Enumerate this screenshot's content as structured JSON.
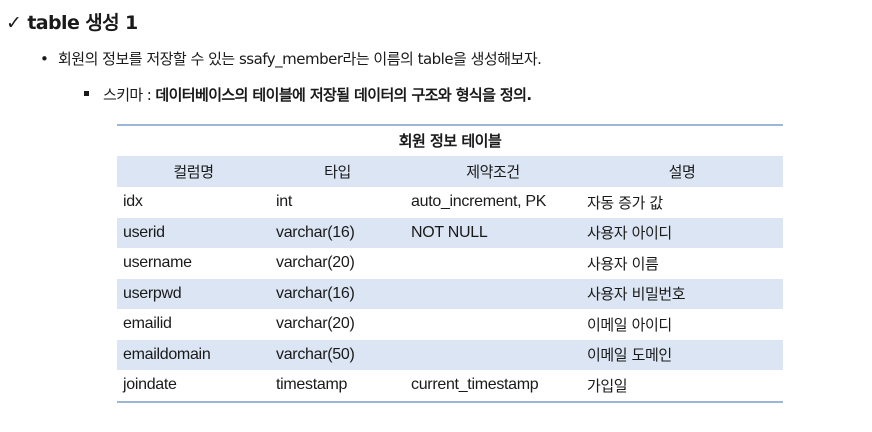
{
  "heading": {
    "check": "✓",
    "text": "table 생성 1"
  },
  "bullet1": {
    "marker": "•",
    "text": "회원의 정보를 저장할 수 있는 ssafy_member라는 이름의 table을 생성해보자."
  },
  "bullet2": {
    "prefix": "스키마 : ",
    "bold_text": "데이터베이스의 테이블에 저장될 데이터의 구조와 형식을 정의."
  },
  "table": {
    "caption": "회원 정보 테이블",
    "headers": [
      "컬럼명",
      "타입",
      "제약조건",
      "설명"
    ],
    "rows": [
      [
        "idx",
        "int",
        "auto_increment, PK",
        "자동 증가 값"
      ],
      [
        "userid",
        "varchar(16)",
        "NOT NULL",
        "사용자 아이디"
      ],
      [
        "username",
        "varchar(20)",
        "",
        "사용자 이름"
      ],
      [
        "userpwd",
        "varchar(16)",
        "",
        "사용자 비밀번호"
      ],
      [
        "emailid",
        "varchar(20)",
        "",
        "이메일 아이디"
      ],
      [
        "emaildomain",
        "varchar(50)",
        "",
        "이메일 도메인"
      ],
      [
        "joindate",
        "timestamp",
        "current_timestamp",
        "가입일"
      ]
    ]
  },
  "colors": {
    "header_fill": "#dbe5f3",
    "rule": "#9db6d6",
    "text": "#1a1a1a"
  }
}
